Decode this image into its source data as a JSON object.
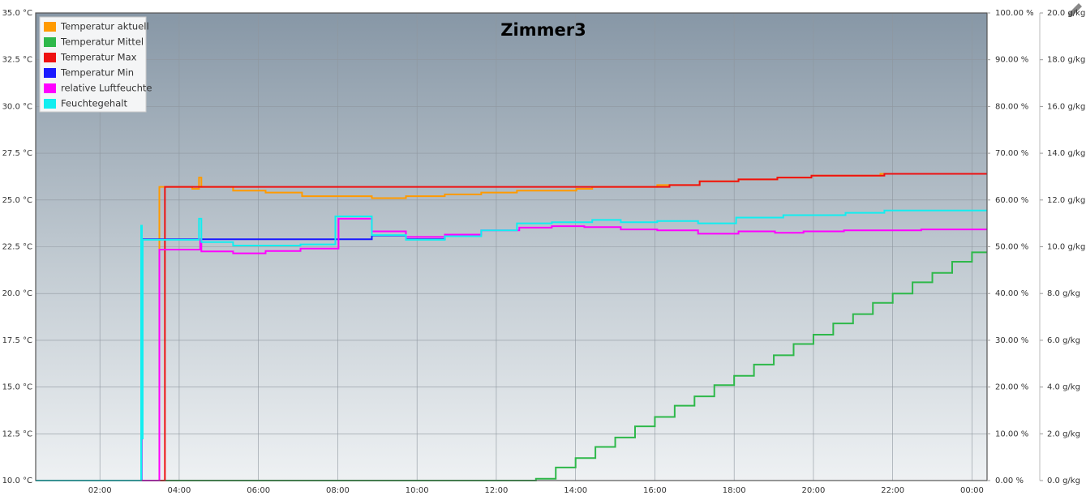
{
  "chart_data": {
    "type": "line",
    "title": "Zimmer3",
    "xlim": [
      0.38,
      24.38
    ],
    "xticks": [
      {
        "value": 2,
        "label": "02:00"
      },
      {
        "value": 4,
        "label": "04:00"
      },
      {
        "value": 6,
        "label": "06:00"
      },
      {
        "value": 8,
        "label": "08:00"
      },
      {
        "value": 10,
        "label": "10:00"
      },
      {
        "value": 12,
        "label": "12:00"
      },
      {
        "value": 14,
        "label": "14:00"
      },
      {
        "value": 16,
        "label": "16:00"
      },
      {
        "value": 18,
        "label": "18:00"
      },
      {
        "value": 20,
        "label": "20:00"
      },
      {
        "value": 22,
        "label": "22:00"
      },
      {
        "value": 24,
        "label": "00:00"
      }
    ],
    "ylim": [
      10,
      35
    ],
    "yticks": [
      {
        "value": 10,
        "label": "10.0 °C"
      },
      {
        "value": 12.5,
        "label": "12.5 °C"
      },
      {
        "value": 15,
        "label": "15.0 °C"
      },
      {
        "value": 17.5,
        "label": "17.5 °C"
      },
      {
        "value": 20,
        "label": "20.0 °C"
      },
      {
        "value": 22.5,
        "label": "22.5 °C"
      },
      {
        "value": 25,
        "label": "25.0 °C"
      },
      {
        "value": 27.5,
        "label": "27.5 °C"
      },
      {
        "value": 30,
        "label": "30.0 °C"
      },
      {
        "value": 32.5,
        "label": "32.5 °C"
      },
      {
        "value": 35,
        "label": "35.0 °C"
      }
    ],
    "y2lim": [
      0,
      100
    ],
    "y2ticks": [
      {
        "value": 0,
        "label": "0.00 %"
      },
      {
        "value": 10,
        "label": "10.00 %"
      },
      {
        "value": 20,
        "label": "20.00 %"
      },
      {
        "value": 30,
        "label": "30.00 %"
      },
      {
        "value": 40,
        "label": "40.00 %"
      },
      {
        "value": 50,
        "label": "50.00 %"
      },
      {
        "value": 60,
        "label": "60.00 %"
      },
      {
        "value": 70,
        "label": "70.00 %"
      },
      {
        "value": 80,
        "label": "80.00 %"
      },
      {
        "value": 90,
        "label": "90.00 %"
      },
      {
        "value": 100,
        "label": "100.00 %"
      }
    ],
    "y3lim": [
      0,
      20
    ],
    "y3ticks": [
      {
        "value": 0,
        "label": "0.0 g/kg"
      },
      {
        "value": 2,
        "label": "2.0 g/kg"
      },
      {
        "value": 4,
        "label": "4.0 g/kg"
      },
      {
        "value": 6,
        "label": "6.0 g/kg"
      },
      {
        "value": 8,
        "label": "8.0 g/kg"
      },
      {
        "value": 10,
        "label": "10.0 g/kg"
      },
      {
        "value": 12,
        "label": "12.0 g/kg"
      },
      {
        "value": 14,
        "label": "14.0 g/kg"
      },
      {
        "value": 16,
        "label": "16.0 g/kg"
      },
      {
        "value": 18,
        "label": "18.0 g/kg"
      },
      {
        "value": 20,
        "label": "20.0 g/kg"
      }
    ],
    "grid": true,
    "legend": "top-left",
    "series": [
      {
        "name": "Temperatur aktuell",
        "color": "#ff9a00",
        "axis": "y",
        "x": [
          0.38,
          3.5,
          4.33,
          4.5,
          4.56,
          5.36,
          6.18,
          7.1,
          8.86,
          9.72,
          10.7,
          11.62,
          12.52,
          14.02,
          14.42,
          16.06,
          17.13,
          18.11,
          19.09,
          19.95,
          21.69,
          24.38
        ],
        "values": [
          10,
          25.7,
          25.6,
          26.2,
          25.7,
          25.5,
          25.4,
          25.2,
          25.1,
          25.2,
          25.3,
          25.4,
          25.5,
          25.6,
          25.7,
          25.8,
          26.0,
          26.1,
          26.2,
          26.3,
          26.4,
          26.4
        ]
      },
      {
        "name": "Temperatur Mittel",
        "color": "#2eb84a",
        "axis": "y",
        "x": [
          0.38,
          13.0,
          13.5,
          14.0,
          14.5,
          15.0,
          15.5,
          16.0,
          16.5,
          17.0,
          17.5,
          18.0,
          18.5,
          19.0,
          19.5,
          20.0,
          20.5,
          21.0,
          21.5,
          22.0,
          22.5,
          23.0,
          23.5,
          24.0,
          24.38
        ],
        "values": [
          10,
          10.1,
          10.7,
          11.2,
          11.8,
          12.3,
          12.9,
          13.4,
          14.0,
          14.5,
          15.1,
          15.6,
          16.2,
          16.7,
          17.3,
          17.8,
          18.4,
          18.9,
          19.5,
          20.0,
          20.6,
          21.1,
          21.7,
          22.2,
          22.2
        ]
      },
      {
        "name": "Temperatur Max",
        "color": "#ee1111",
        "axis": "y",
        "x": [
          0.38,
          3.64,
          16.37,
          17.13,
          18.11,
          19.09,
          19.95,
          21.79,
          24.38
        ],
        "values": [
          10,
          25.7,
          25.8,
          26.0,
          26.1,
          26.2,
          26.3,
          26.4,
          26.4
        ]
      },
      {
        "name": "Temperatur Min",
        "color": "#1a1aff",
        "axis": "y",
        "x": [
          0.38,
          3.05,
          8.86,
          9.72,
          10.7
        ],
        "values": [
          10,
          22.9,
          23.1,
          22.9,
          23.1
        ]
      },
      {
        "name": "relative Luftfeuchte",
        "color": "#ff00ff",
        "axis": "y2",
        "x": [
          0.38,
          3.5,
          4.53,
          4.56,
          5.36,
          6.18,
          7.06,
          8.02,
          8.86,
          9.72,
          10.7,
          11.62,
          12.58,
          13.4,
          14.22,
          15.14,
          16.06,
          17.09,
          18.11,
          19.03,
          19.75,
          20.77,
          22.72,
          24.38
        ],
        "values": [
          0,
          49.4,
          51.6,
          49.0,
          48.6,
          49.1,
          49.6,
          56.0,
          53.3,
          52.1,
          52.6,
          53.5,
          54.1,
          54.4,
          54.2,
          53.7,
          53.5,
          52.8,
          53.3,
          53.0,
          53.3,
          53.5,
          53.7,
          53.7
        ]
      },
      {
        "name": "Feuchtegehalt",
        "color": "#11eef0",
        "axis": "y3",
        "x": [
          0.38,
          3.04,
          3.06,
          3.08,
          3.1,
          4.5,
          4.56,
          5.36,
          7.06,
          7.94,
          8.86,
          9.72,
          10.7,
          11.62,
          12.52,
          13.4,
          14.42,
          15.14,
          16.06,
          17.09,
          18.05,
          19.24,
          20.81,
          21.79,
          24.38
        ],
        "values": [
          0,
          10.9,
          1.8,
          10.3,
          10.3,
          11.2,
          10.2,
          10.05,
          10.1,
          11.3,
          10.5,
          10.3,
          10.45,
          10.7,
          11.0,
          11.05,
          11.15,
          11.05,
          11.1,
          11.0,
          11.25,
          11.35,
          11.45,
          11.55,
          11.55
        ]
      }
    ]
  }
}
